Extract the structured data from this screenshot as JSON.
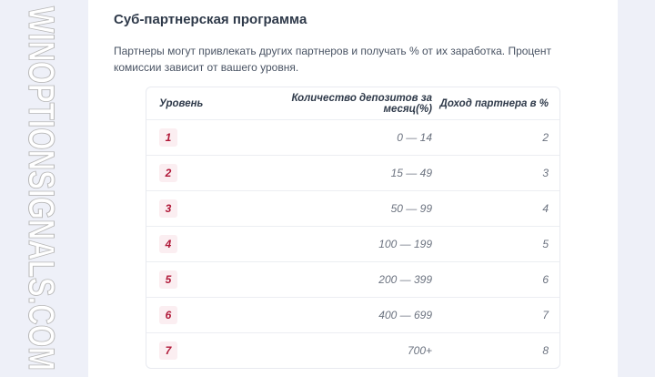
{
  "section": {
    "title": "Суб-партнерская программа",
    "description": "Партнеры могут привлекать других партнеров и получать % от их заработка. Процент комиссии зависит от вашего уровня."
  },
  "table": {
    "headers": [
      "Уровень",
      "Количество депозитов за месяц(%)",
      "Доход партнера в %"
    ],
    "rows": [
      {
        "level": "1",
        "deposits": "0 — 14",
        "income": "2"
      },
      {
        "level": "2",
        "deposits": "15 — 49",
        "income": "3"
      },
      {
        "level": "3",
        "deposits": "50 — 99",
        "income": "4"
      },
      {
        "level": "4",
        "deposits": "100 — 199",
        "income": "5"
      },
      {
        "level": "5",
        "deposits": "200 — 399",
        "income": "6"
      },
      {
        "level": "6",
        "deposits": "400 — 699",
        "income": "7"
      },
      {
        "level": "7",
        "deposits": "700+",
        "income": "8"
      }
    ]
  },
  "watermark": "WINOPTIONSIGNALS.COM",
  "colors": {
    "badge_text": "#b01838",
    "badge_bg": "#fbeef1",
    "page_bg": "#eef0f8"
  }
}
